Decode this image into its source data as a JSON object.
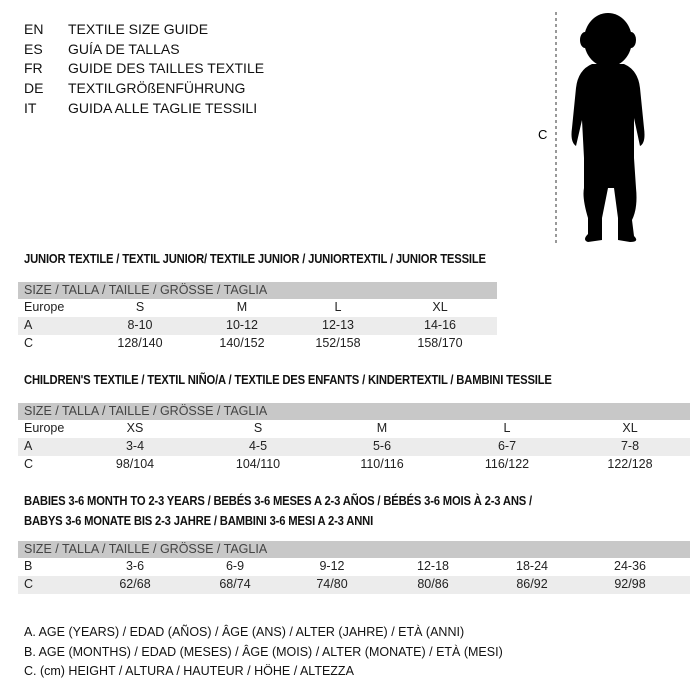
{
  "languages": [
    {
      "code": "EN",
      "text": "TEXTILE SIZE GUIDE"
    },
    {
      "code": "ES",
      "text": "GUÍA DE TALLAS"
    },
    {
      "code": "FR",
      "text": "GUIDE DES TAILLES TEXTILE"
    },
    {
      "code": "DE",
      "text": "TEXTILGRÖßENFÜHRUNG"
    },
    {
      "code": "IT",
      "text": "GUIDA ALLE TAGLIE TESSILI"
    }
  ],
  "figure": {
    "height_label": "C",
    "icon": "child-silhouette"
  },
  "tables": [
    {
      "title_lines": [
        "JUNIOR TEXTILE / TEXTIL JUNIOR/ TEXTILE JUNIOR / JUNIORTEXTIL / JUNIOR TESSILE"
      ],
      "header": "SIZE / TALLA / TAILLE / GRÖSSE / TAGLIA",
      "rows": [
        {
          "label": "Europe",
          "cells": [
            "S",
            "M",
            "L",
            "XL"
          ]
        },
        {
          "label": "A",
          "cells": [
            "8-10",
            "10-12",
            "12-13",
            "14-16"
          ]
        },
        {
          "label": "C",
          "cells": [
            "128/140",
            "140/152",
            "152/158",
            "158/170"
          ]
        }
      ]
    },
    {
      "title_lines": [
        "CHILDREN'S TEXTILE / TEXTIL NIÑO/A / TEXTILE DES ENFANTS / KINDERTEXTIL / BAMBINI TESSILE"
      ],
      "header": "SIZE / TALLA / TAILLE / GRÖSSE / TAGLIA",
      "rows": [
        {
          "label": "Europe",
          "cells": [
            "XS",
            "S",
            "M",
            "L",
            "XL"
          ]
        },
        {
          "label": "A",
          "cells": [
            "3-4",
            "4-5",
            "5-6",
            "6-7",
            "7-8"
          ]
        },
        {
          "label": "C",
          "cells": [
            "98/104",
            "104/110",
            "110/116",
            "116/122",
            "122/128"
          ]
        }
      ]
    },
    {
      "title_lines": [
        "BABIES 3-6 MONTH TO 2-3 YEARS / BEBÉS 3-6 MESES A 2-3 AÑOS / BÉBÉS 3-6 MOIS À 2-3 ANS /",
        "BABYS 3-6 MONATE BIS 2-3 JAHRE / BAMBINI 3-6 MESI A 2-3 ANNI"
      ],
      "header": "SIZE / TALLA / TAILLE / GRÖSSE / TAGLIA",
      "rows": [
        {
          "label": "B",
          "cells": [
            "3-6",
            "6-9",
            "9-12",
            "12-18",
            "18-24",
            "24-36"
          ]
        },
        {
          "label": "C",
          "cells": [
            "62/68",
            "68/74",
            "74/80",
            "80/86",
            "86/92",
            "92/98"
          ]
        }
      ]
    }
  ],
  "footer": [
    "A. AGE (YEARS) / EDAD (AÑOS) / ÂGE (ANS) / ALTER (JAHRE) / ETÀ (ANNI)",
    "B. AGE (MONTHS) / EDAD (MESES) / ÂGE (MOIS) / ALTER (MONATE) / ETÀ (MESI)",
    "C. (cm) HEIGHT / ALTURA / HAUTEUR / HÖHE / ALTEZZA"
  ]
}
